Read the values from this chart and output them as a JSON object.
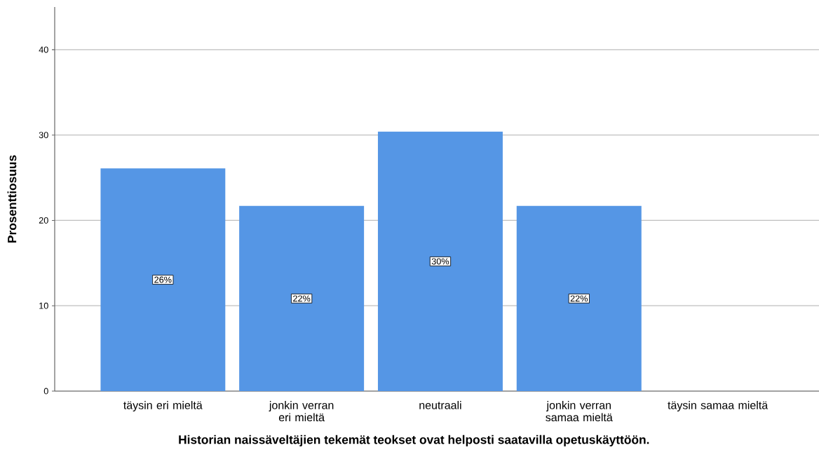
{
  "chart_data": {
    "type": "bar",
    "xlabel": "Historian naissäveltäjien tekemät teokset ovat helposti saatavilla opetuskäyttöön.",
    "ylabel": "Prosenttiosuus",
    "categories": [
      "täysin eri mieltä",
      "jonkin verran eri mieltä",
      "neutraali",
      "jonkin verran samaa mieltä",
      "täysin samaa mieltä"
    ],
    "values": [
      26.1,
      21.7,
      30.4,
      21.7,
      0
    ],
    "value_labels": [
      "26%",
      "22%",
      "30%",
      "22%",
      null
    ],
    "color": "#5596e5",
    "ylim": [
      0,
      45
    ],
    "yticks": [
      0,
      10,
      20,
      30,
      40
    ],
    "grid": "y"
  }
}
